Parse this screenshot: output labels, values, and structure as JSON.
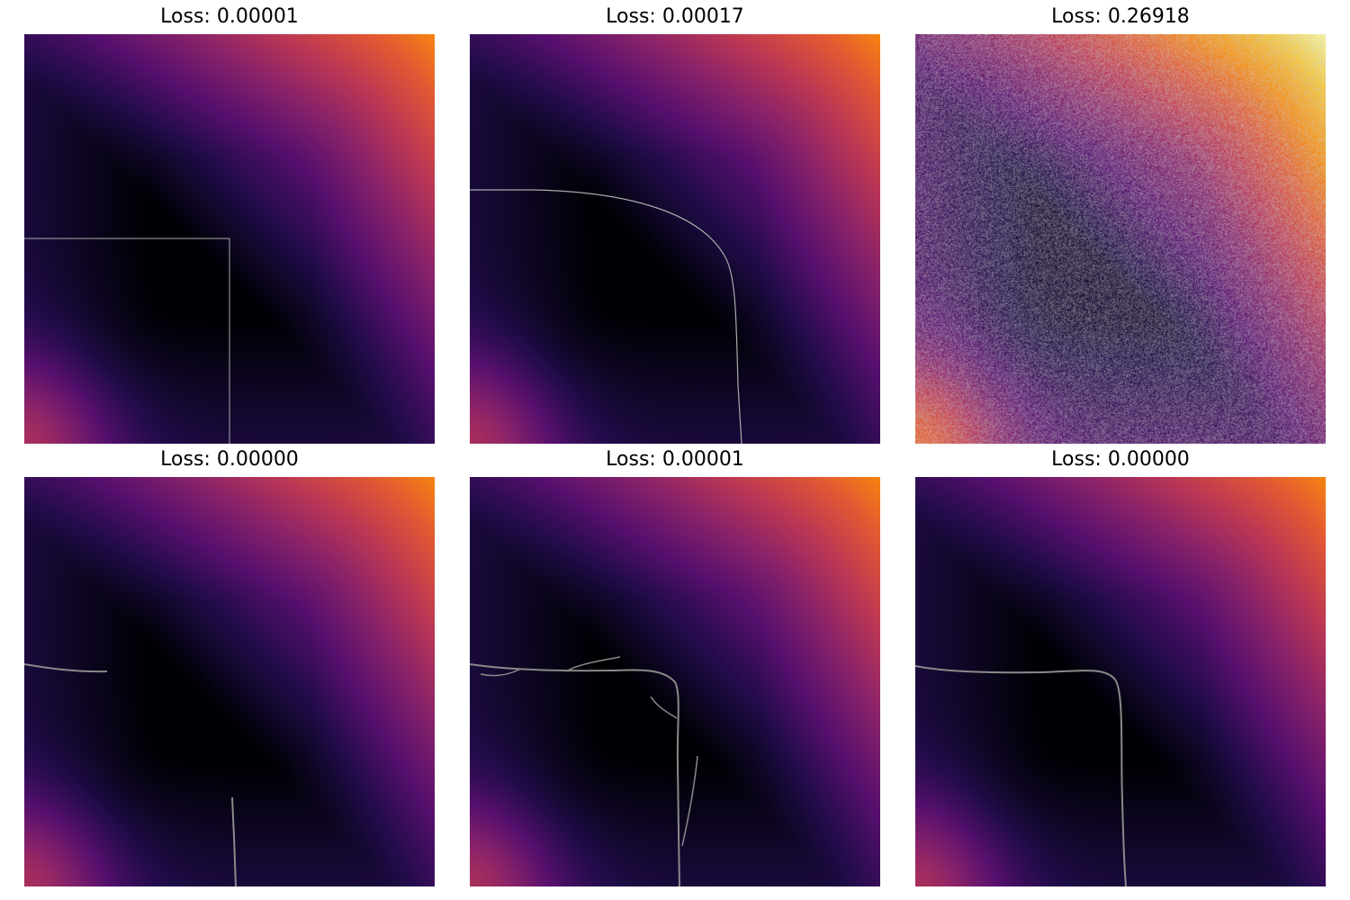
{
  "chart_data": [
    {
      "type": "heatmap",
      "title": "Loss: 0.00001",
      "colormap": "inferno",
      "contour": "square-corner",
      "noise": false
    },
    {
      "type": "heatmap",
      "title": "Loss: 0.00017",
      "colormap": "inferno",
      "contour": "rounded-corner",
      "noise": false
    },
    {
      "type": "heatmap",
      "title": "Loss: 0.26918",
      "colormap": "inferno",
      "contour": "none",
      "noise": true
    },
    {
      "type": "heatmap",
      "title": "Loss: 0.00000",
      "colormap": "inferno",
      "contour": "fragments",
      "noise": false
    },
    {
      "type": "heatmap",
      "title": "Loss: 0.00001",
      "colormap": "inferno",
      "contour": "noisy-rounded",
      "noise": false
    },
    {
      "type": "heatmap",
      "title": "Loss: 0.00000",
      "colormap": "inferno",
      "contour": "smooth-rounded",
      "noise": false
    }
  ],
  "colors": {
    "contour": "#aaaaaa",
    "background": "#ffffff"
  }
}
